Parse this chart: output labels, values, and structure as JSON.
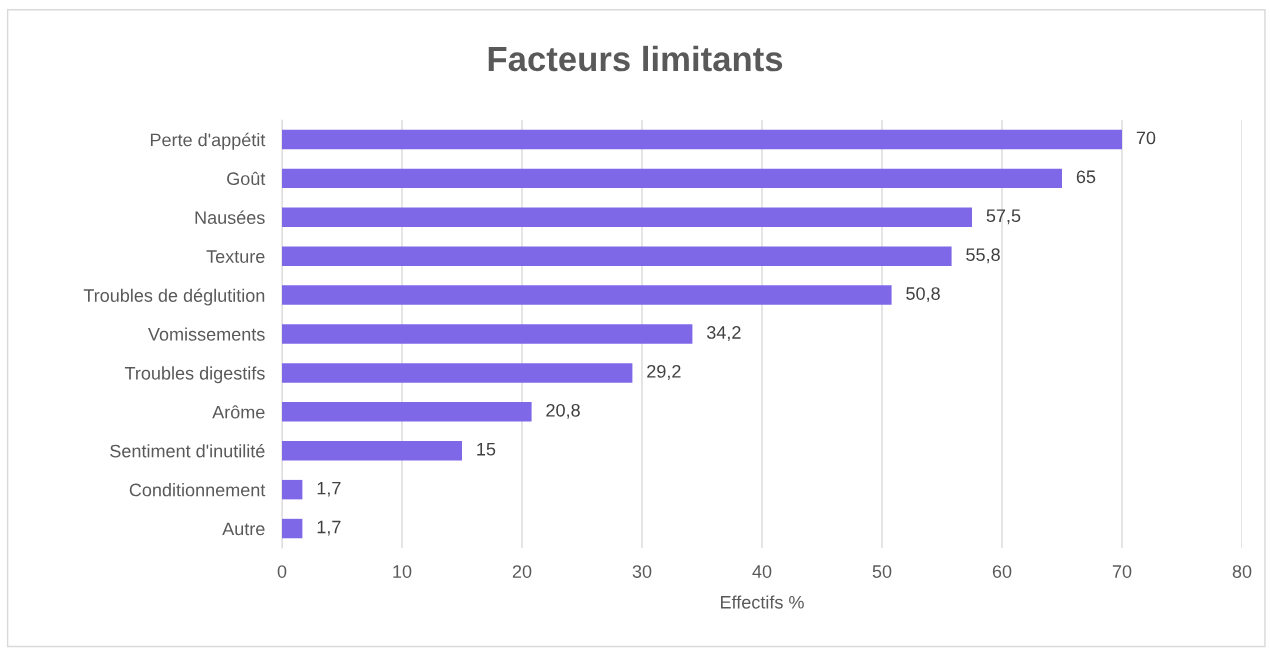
{
  "chart_data": {
    "type": "bar",
    "orientation": "horizontal",
    "title": "Facteurs limitants",
    "xlabel": "Effectifs %",
    "categories": [
      "Perte d'appétit",
      "Goût",
      "Nausées",
      "Texture",
      "Troubles de déglutition",
      "Vomissements",
      "Troubles digestifs",
      "Arôme",
      "Sentiment d'inutilité",
      "Conditionnement",
      "Autre"
    ],
    "values": [
      70,
      65,
      57.5,
      55.8,
      50.8,
      34.2,
      29.2,
      20.8,
      15,
      1.7,
      1.7
    ],
    "value_labels": [
      "70",
      "65",
      "57,5",
      "55,8",
      "50,8",
      "34,2",
      "29,2",
      "20,8",
      "15",
      "1,7",
      "1,7"
    ],
    "color": "#7f68e8",
    "xlim": [
      0,
      80
    ],
    "xticks": [
      0,
      10,
      20,
      30,
      40,
      50,
      60,
      70,
      80
    ],
    "grid": "x"
  }
}
